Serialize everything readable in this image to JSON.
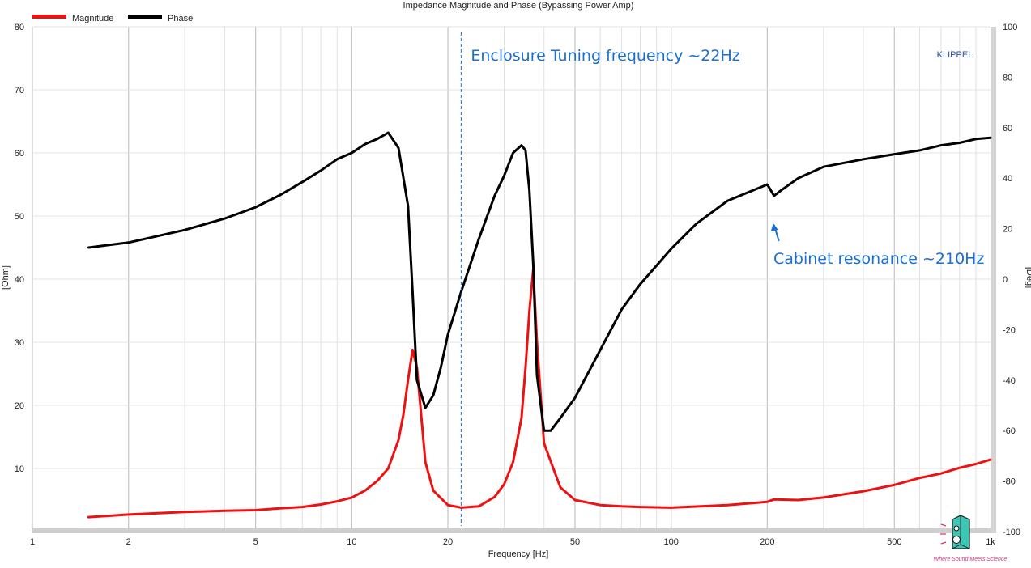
{
  "chart_data": {
    "type": "line",
    "title": "Impedance Magnitude and Phase (Bypassing Power Amp)",
    "xlabel": "Frequency [Hz]",
    "ylabel_left": "[Ohm]",
    "ylabel_right": "[Deg]",
    "x_scale": "log",
    "xlim": [
      1,
      1000
    ],
    "ylim_left": [
      0,
      80
    ],
    "ylim_right": [
      -100,
      100
    ],
    "x_ticks": [
      1,
      2,
      5,
      10,
      20,
      50,
      100,
      200,
      500,
      1000
    ],
    "x_tick_labels": [
      "1",
      "2",
      "5",
      "10",
      "20",
      "50",
      "100",
      "200",
      "500",
      "1k"
    ],
    "y_left_ticks": [
      10,
      20,
      30,
      40,
      50,
      60,
      70,
      80
    ],
    "y_right_ticks": [
      -100,
      -80,
      -60,
      -40,
      -20,
      0,
      20,
      40,
      60,
      80,
      100
    ],
    "grid": true,
    "legend_position": "top-left",
    "series": [
      {
        "name": "Magnitude",
        "axis": "left",
        "color": "#ee1111",
        "x": [
          1.5,
          2,
          3,
          4,
          5,
          6,
          7,
          8,
          9,
          10,
          11,
          12,
          13,
          14,
          14.5,
          15,
          15.5,
          16,
          17,
          18,
          20,
          22,
          25,
          28,
          30,
          32,
          34,
          35,
          36,
          37,
          38,
          40,
          45,
          50,
          60,
          70,
          80,
          100,
          150,
          200,
          210,
          250,
          300,
          400,
          500,
          600,
          700,
          800,
          900,
          1000
        ],
        "values": [
          2.3,
          2.7,
          3.1,
          3.3,
          3.4,
          3.7,
          3.9,
          4.3,
          4.8,
          5.4,
          6.5,
          8.0,
          10.0,
          14.5,
          18.5,
          24.0,
          28.8,
          26.0,
          11.0,
          6.5,
          4.2,
          3.8,
          4.0,
          5.5,
          7.5,
          11.0,
          18.0,
          26.0,
          35.0,
          41.5,
          30.0,
          14.0,
          7.0,
          5.0,
          4.2,
          4.0,
          3.9,
          3.8,
          4.2,
          4.7,
          5.1,
          5.0,
          5.4,
          6.4,
          7.4,
          8.5,
          9.2,
          10.1,
          10.7,
          11.4
        ]
      },
      {
        "name": "Phase",
        "axis": "right",
        "color": "#000000",
        "x": [
          1.5,
          2,
          3,
          4,
          5,
          6,
          7,
          8,
          9,
          10,
          11,
          12,
          13,
          13.5,
          14,
          15,
          15.5,
          16,
          17,
          18,
          19,
          20,
          22,
          25,
          28,
          30,
          32,
          34,
          35,
          36,
          37,
          38,
          40,
          42,
          45,
          50,
          60,
          70,
          80,
          100,
          120,
          150,
          200,
          210,
          220,
          250,
          300,
          400,
          500,
          600,
          700,
          800,
          900,
          1000
        ],
        "values": [
          12.5,
          14.5,
          19.5,
          24,
          28.5,
          33.5,
          38.5,
          43,
          47.5,
          50,
          53.5,
          55.5,
          58,
          55,
          52,
          29,
          -5,
          -40,
          -51,
          -46,
          -35,
          -22,
          -5,
          16,
          33,
          41,
          50,
          53,
          51,
          35,
          6,
          -38,
          -60,
          -60,
          -55,
          -47,
          -28,
          -12,
          -2,
          12,
          22,
          31,
          37.5,
          33,
          35,
          40,
          44.5,
          47.5,
          49.5,
          51,
          53,
          54,
          55.5,
          56
        ]
      }
    ],
    "annotations": [
      {
        "text": "Enclosure Tuning frequency ~22Hz",
        "x": 22,
        "kind": "dashed-vertical-line",
        "color": "#1a6fd4"
      },
      {
        "text": "Cabinet resonance ~210Hz",
        "x": 210,
        "kind": "arrow",
        "color": "#1a6fd4"
      }
    ],
    "brand_label": "KLIPPEL",
    "logo_caption": "Where Sound Meets Science"
  }
}
